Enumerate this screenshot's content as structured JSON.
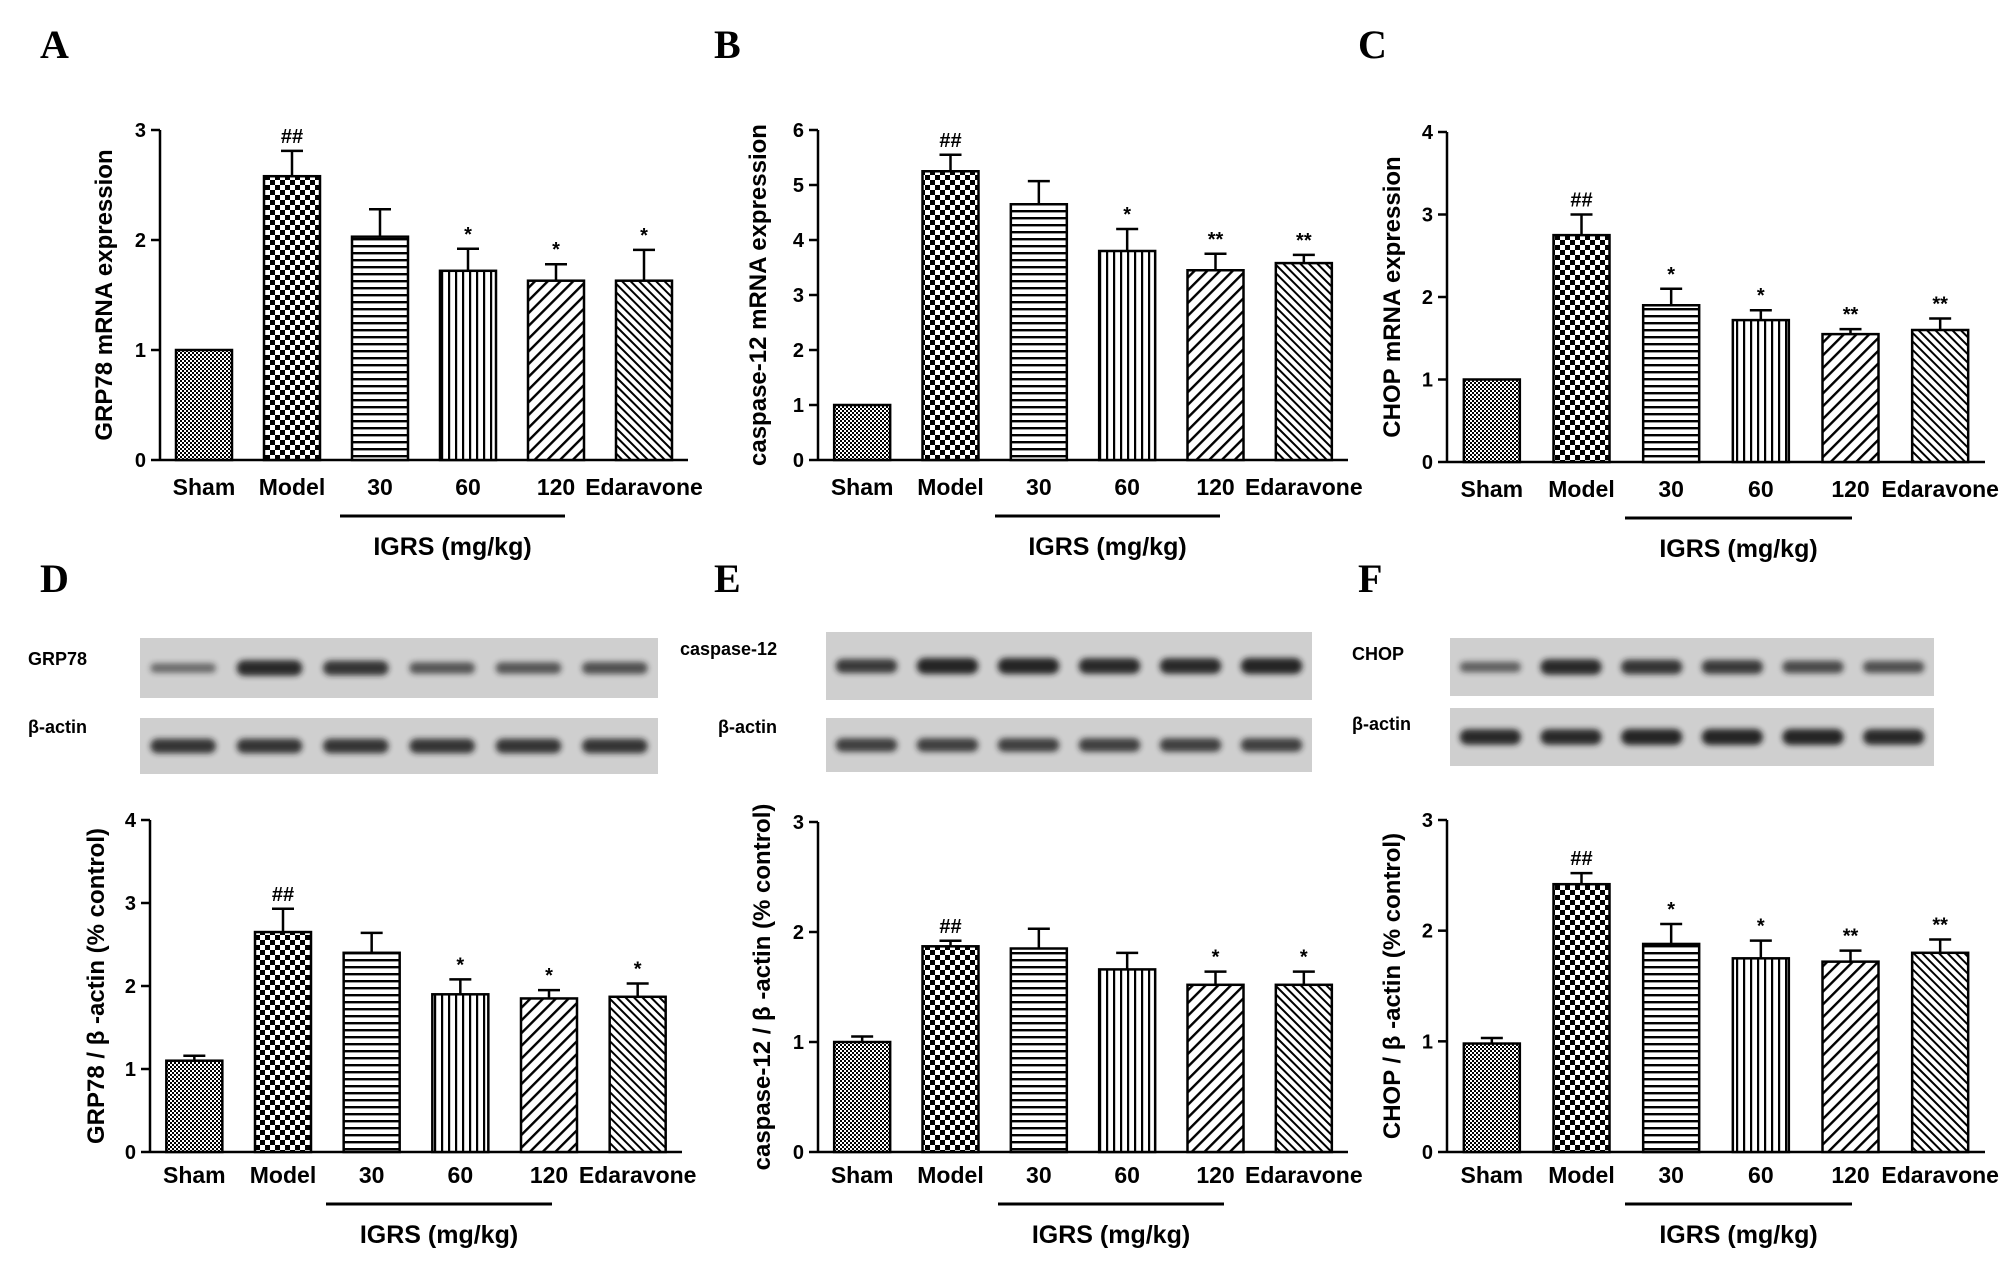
{
  "colors": {
    "ink": "#000000",
    "bar_fill": "#ffffff",
    "blot_bg": "#cfcfcf",
    "band": "#1c1c1c"
  },
  "chart_data": [
    {
      "panel": "A",
      "type": "bar",
      "categories": [
        "Sham",
        "Model",
        "30",
        "60",
        "120",
        "Edaravone"
      ],
      "values": [
        1.0,
        2.58,
        2.03,
        1.72,
        1.63,
        1.63
      ],
      "errors": [
        0.0,
        0.23,
        0.25,
        0.2,
        0.15,
        0.28
      ],
      "sig": [
        "",
        "##",
        "",
        "*",
        "*",
        "*"
      ],
      "patterns": [
        "dense",
        "check",
        "hline",
        "vline",
        "diag",
        "diag2"
      ],
      "ylabel": "GRP78 mRNA expression",
      "ylim": [
        0,
        3
      ],
      "yticks": [
        0,
        1,
        2,
        3
      ],
      "group_label": "IGRS (mg/kg)"
    },
    {
      "panel": "B",
      "type": "bar",
      "categories": [
        "Sham",
        "Model",
        "30",
        "60",
        "120",
        "Edaravone"
      ],
      "values": [
        1.0,
        5.25,
        4.65,
        3.8,
        3.45,
        3.58
      ],
      "errors": [
        0.0,
        0.3,
        0.42,
        0.4,
        0.3,
        0.15
      ],
      "sig": [
        "",
        "##",
        "",
        "*",
        "**",
        "**"
      ],
      "patterns": [
        "dense",
        "check",
        "hline",
        "vline",
        "diag",
        "diag2"
      ],
      "ylabel": "caspase-12 mRNA expression",
      "ylim": [
        0,
        6
      ],
      "yticks": [
        0,
        1,
        2,
        3,
        4,
        5,
        6
      ],
      "group_label": "IGRS (mg/kg)"
    },
    {
      "panel": "C",
      "type": "bar",
      "categories": [
        "Sham",
        "Model",
        "30",
        "60",
        "120",
        "Edaravone"
      ],
      "values": [
        1.0,
        2.75,
        1.9,
        1.72,
        1.55,
        1.6
      ],
      "errors": [
        0.0,
        0.25,
        0.2,
        0.12,
        0.06,
        0.14
      ],
      "sig": [
        "",
        "##",
        "*",
        "*",
        "**",
        "**"
      ],
      "patterns": [
        "dense",
        "check",
        "hline",
        "vline",
        "diag",
        "diag2"
      ],
      "ylabel": "CHOP mRNA expression",
      "ylim": [
        0,
        4
      ],
      "yticks": [
        0,
        1,
        2,
        3,
        4
      ],
      "group_label": "IGRS (mg/kg)"
    },
    {
      "panel": "D",
      "type": "bar",
      "categories": [
        "Sham",
        "Model",
        "30",
        "60",
        "120",
        "Edaravone"
      ],
      "values": [
        1.1,
        2.65,
        2.4,
        1.9,
        1.85,
        1.87
      ],
      "errors": [
        0.06,
        0.28,
        0.24,
        0.18,
        0.1,
        0.16
      ],
      "sig": [
        "",
        "##",
        "",
        "*",
        "*",
        "*"
      ],
      "patterns": [
        "dense",
        "check",
        "hline",
        "vline",
        "diag",
        "diag2"
      ],
      "ylabel": "GRP78 / β -actin (% control)",
      "ylim": [
        0,
        4
      ],
      "yticks": [
        0,
        1,
        2,
        3,
        4
      ],
      "group_label": "IGRS (mg/kg)",
      "blot_labels": [
        "GRP78",
        "β-actin"
      ]
    },
    {
      "panel": "E",
      "type": "bar",
      "categories": [
        "Sham",
        "Model",
        "30",
        "60",
        "120",
        "Edaravone"
      ],
      "values": [
        1.0,
        1.87,
        1.85,
        1.66,
        1.52,
        1.52
      ],
      "errors": [
        0.05,
        0.05,
        0.18,
        0.15,
        0.12,
        0.12
      ],
      "sig": [
        "",
        "##",
        "",
        "",
        "*",
        "*"
      ],
      "patterns": [
        "dense",
        "check",
        "hline",
        "vline",
        "diag",
        "diag2"
      ],
      "ylabel": "caspase-12 / β -actin (% control)",
      "ylim": [
        0,
        3
      ],
      "yticks": [
        0,
        1,
        2,
        3
      ],
      "group_label": "IGRS (mg/kg)",
      "blot_labels": [
        "caspase-12",
        "β-actin"
      ]
    },
    {
      "panel": "F",
      "type": "bar",
      "categories": [
        "Sham",
        "Model",
        "30",
        "60",
        "120",
        "Edaravone"
      ],
      "values": [
        0.98,
        2.42,
        1.88,
        1.75,
        1.72,
        1.8
      ],
      "errors": [
        0.05,
        0.1,
        0.18,
        0.16,
        0.1,
        0.12
      ],
      "sig": [
        "",
        "##",
        "*",
        "*",
        "**",
        "**"
      ],
      "patterns": [
        "dense",
        "check",
        "hline",
        "vline",
        "diag",
        "diag2"
      ],
      "ylabel": "CHOP / β -actin (% control)",
      "ylim": [
        0,
        3
      ],
      "yticks": [
        0,
        1,
        2,
        3
      ],
      "group_label": "IGRS (mg/kg)",
      "blot_labels": [
        "CHOP",
        "β-actin"
      ]
    }
  ]
}
